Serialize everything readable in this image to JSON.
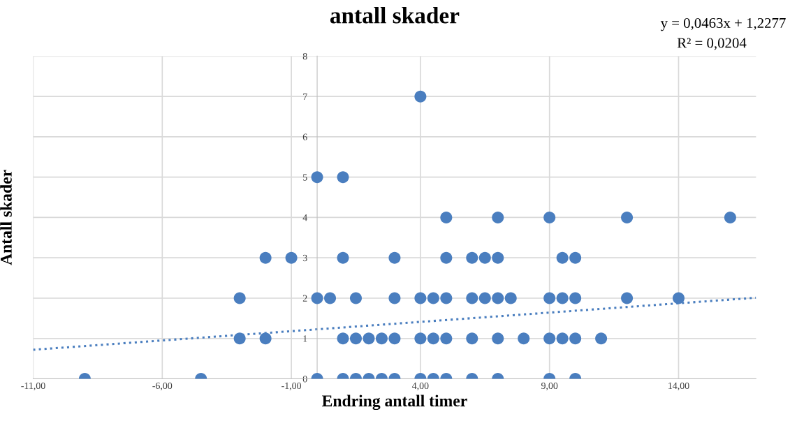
{
  "chart_data": {
    "type": "scatter",
    "title": "antall skader",
    "xlabel": "Endring antall timer",
    "ylabel": "Antall skader",
    "xlim": [
      -11,
      17
    ],
    "ylim": [
      0,
      8
    ],
    "xticks": [
      {
        "value": -11,
        "label": "-11,00"
      },
      {
        "value": -6,
        "label": "-6,00"
      },
      {
        "value": -1,
        "label": "-1,00"
      },
      {
        "value": 4,
        "label": "4,00"
      },
      {
        "value": 9,
        "label": "9,00"
      },
      {
        "value": 14,
        "label": "14,00"
      }
    ],
    "yticks": [
      0,
      1,
      2,
      3,
      4,
      5,
      6,
      7,
      8
    ],
    "grid": true,
    "marker": "circle",
    "annotations": [
      "y = 0,0463x + 1,2277",
      "R² = 0,0204"
    ],
    "series": [
      {
        "color": "#4a7ebf",
        "x": [
          -9,
          -4.5,
          0,
          1,
          1.5,
          2,
          2.5,
          3,
          4,
          4.5,
          5,
          6,
          7,
          9,
          10,
          -3,
          -2,
          1,
          1.5,
          2,
          2.5,
          3,
          4,
          4.5,
          5,
          6,
          7,
          8,
          9,
          9.5,
          10,
          11,
          -3,
          0,
          0.5,
          1.5,
          3,
          4,
          4.5,
          5,
          6,
          6.5,
          7,
          7.5,
          9,
          9.5,
          10,
          12,
          14,
          -2,
          -1,
          1,
          3,
          5,
          6,
          6.5,
          7,
          9.5,
          10,
          5,
          7,
          9,
          12,
          16,
          0,
          1,
          4
        ],
        "values": [
          0,
          0,
          0,
          0,
          0,
          0,
          0,
          0,
          0,
          0,
          0,
          0,
          0,
          0,
          0,
          1,
          1,
          1,
          1,
          1,
          1,
          1,
          1,
          1,
          1,
          1,
          1,
          1,
          1,
          1,
          1,
          1,
          2,
          2,
          2,
          2,
          2,
          2,
          2,
          2,
          2,
          2,
          2,
          2,
          2,
          2,
          2,
          2,
          2,
          3,
          3,
          3,
          3,
          3,
          3,
          3,
          3,
          3,
          3,
          4,
          4,
          4,
          4,
          4,
          5,
          5,
          7
        ]
      },
      {
        "type": "line",
        "color": "#4a7ebf",
        "line_style": "dotted",
        "marker": "none",
        "x": [
          -11,
          17
        ],
        "values": [
          0.72,
          2.01
        ]
      }
    ]
  }
}
